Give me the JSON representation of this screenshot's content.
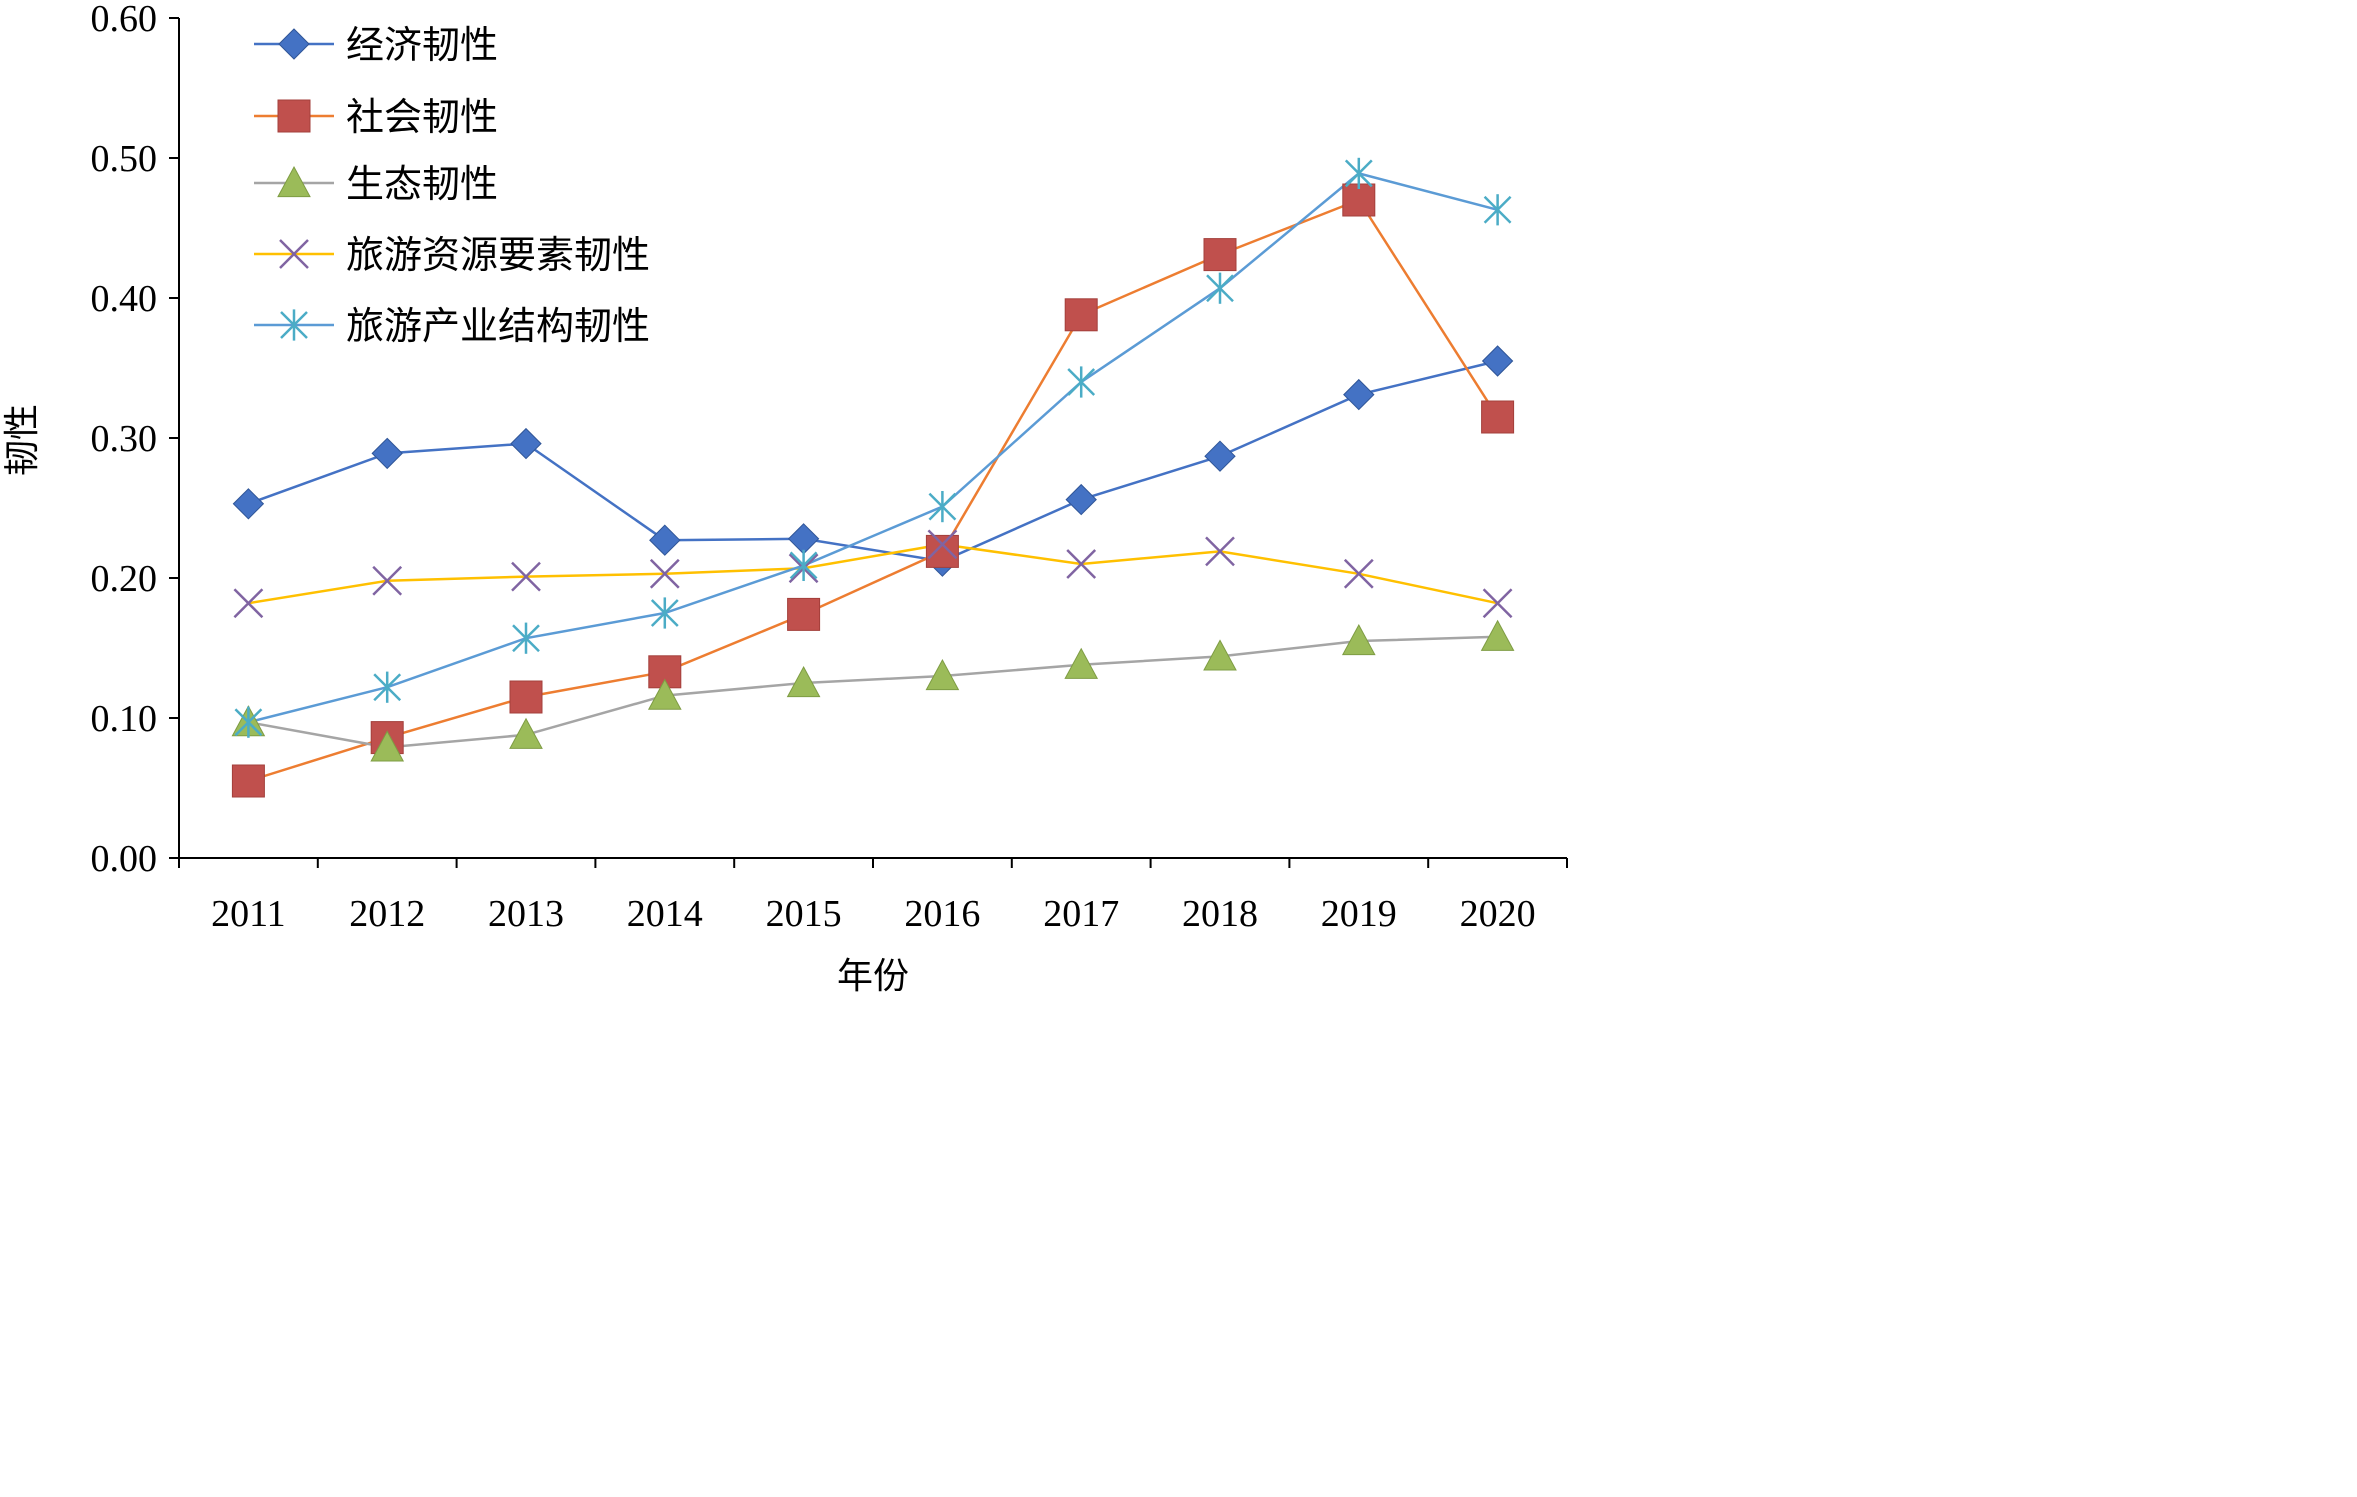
{
  "chart_data": {
    "type": "line",
    "title": "",
    "xlabel": "年份",
    "ylabel": "韧性",
    "ylim": [
      0,
      0.6
    ],
    "yticks": [
      "0.00",
      "0.10",
      "0.20",
      "0.30",
      "0.40",
      "0.50",
      "0.60"
    ],
    "categories": [
      "2011",
      "2012",
      "2013",
      "2014",
      "2015",
      "2016",
      "2017",
      "2018",
      "2019",
      "2020"
    ],
    "grid": false,
    "legend_position": "top-left",
    "series": [
      {
        "name": "经济韧性",
        "color": "#4472C4",
        "line_color": "#4472C4",
        "marker": "diamond",
        "values": [
          0.253,
          0.289,
          0.296,
          0.227,
          0.228,
          0.212,
          0.256,
          0.287,
          0.331,
          0.355
        ]
      },
      {
        "name": "社会韧性",
        "color": "#C0504D",
        "line_color": "#ED7D31",
        "marker": "square",
        "values": [
          0.055,
          0.086,
          0.115,
          0.133,
          0.174,
          0.219,
          0.388,
          0.431,
          0.47,
          0.315
        ]
      },
      {
        "name": "生态韧性",
        "color": "#9BBB59",
        "line_color": "#A5A5A5",
        "marker": "triangle",
        "values": [
          0.097,
          0.079,
          0.088,
          0.116,
          0.125,
          0.13,
          0.138,
          0.144,
          0.155,
          0.158
        ]
      },
      {
        "name": "旅游资源要素韧性",
        "color": "#8064A2",
        "line_color": "#FFC000",
        "marker": "x",
        "values": [
          0.182,
          0.198,
          0.201,
          0.203,
          0.207,
          0.224,
          0.21,
          0.219,
          0.203,
          0.182
        ]
      },
      {
        "name": "旅游产业结构韧性",
        "color": "#4BACC6",
        "line_color": "#5B9BD5",
        "marker": "asterisk",
        "values": [
          0.097,
          0.122,
          0.157,
          0.175,
          0.209,
          0.251,
          0.34,
          0.407,
          0.489,
          0.463
        ]
      }
    ]
  }
}
